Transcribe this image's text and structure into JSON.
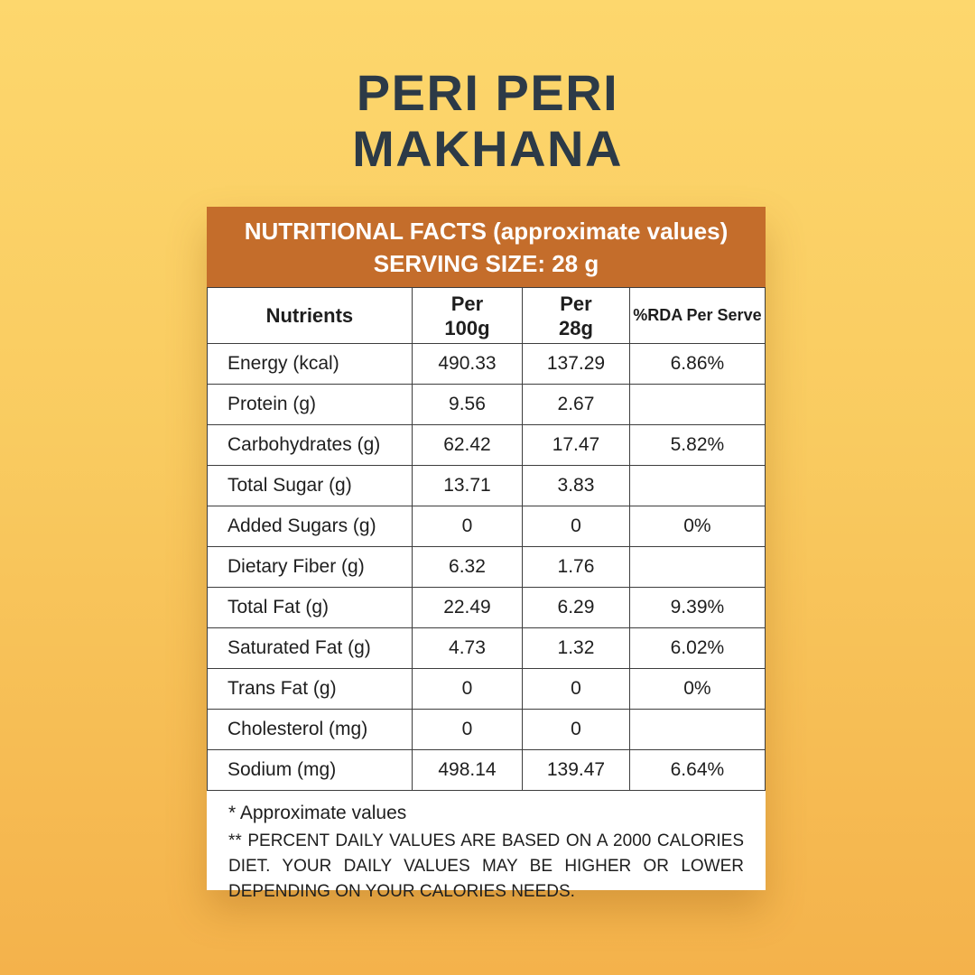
{
  "title": {
    "line1": "PERI PERI",
    "line2": "MAKHANA"
  },
  "colors": {
    "background_top": "#FDD76D",
    "background_bottom": "#F4B24B",
    "header_orange": "#C46D2B",
    "title_text": "#2C3A47",
    "card_background": "#FFFFFF",
    "table_border": "#3D3D3D"
  },
  "card": {
    "header": {
      "line1": "NUTRITIONAL FACTS (approximate values)",
      "line2": "SERVING SIZE: 28 g"
    },
    "table": {
      "columns": {
        "nutrients": "Nutrients",
        "per100g": "Per\n100g",
        "per28g": "Per\n28g",
        "rda": "%RDA Per Serve"
      },
      "rows": [
        {
          "nutrient": "Energy (kcal)",
          "per100g": "490.33",
          "per28g": "137.29",
          "rda": "6.86%"
        },
        {
          "nutrient": "Protein (g)",
          "per100g": "9.56",
          "per28g": "2.67",
          "rda": ""
        },
        {
          "nutrient": "Carbohydrates (g)",
          "per100g": "62.42",
          "per28g": "17.47",
          "rda": "5.82%"
        },
        {
          "nutrient": "Total Sugar (g)",
          "per100g": "13.71",
          "per28g": "3.83",
          "rda": ""
        },
        {
          "nutrient": "Added Sugars (g)",
          "per100g": "0",
          "per28g": "0",
          "rda": "0%"
        },
        {
          "nutrient": "Dietary Fiber (g)",
          "per100g": "6.32",
          "per28g": "1.76",
          "rda": ""
        },
        {
          "nutrient": "Total Fat (g)",
          "per100g": "22.49",
          "per28g": "6.29",
          "rda": "9.39%"
        },
        {
          "nutrient": "Saturated Fat (g)",
          "per100g": "4.73",
          "per28g": "1.32",
          "rda": "6.02%"
        },
        {
          "nutrient": "Trans Fat (g)",
          "per100g": "0",
          "per28g": "0",
          "rda": "0%"
        },
        {
          "nutrient": "Cholesterol (mg)",
          "per100g": "0",
          "per28g": "0",
          "rda": ""
        },
        {
          "nutrient": "Sodium  (mg)",
          "per100g": "498.14",
          "per28g": "139.47",
          "rda": "6.64%"
        }
      ]
    },
    "footnotes": {
      "approx": "* Approximate values",
      "rda": "** PERCENT DAILY VALUES ARE BASED ON A 2000 CALORIES DIET. YOUR DAILY VALUES MAY BE HIGHER OR LOWER DEPENDING ON YOUR CALORIES NEEDS."
    }
  }
}
